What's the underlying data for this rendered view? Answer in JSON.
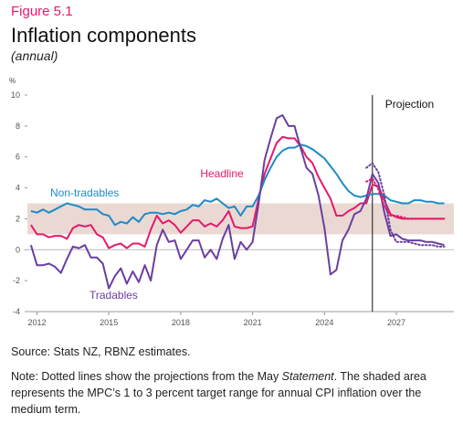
{
  "chart_data": {
    "type": "line",
    "figure_label": "Figure 5.1",
    "title": "Inflation components",
    "subtitle": "(annual)",
    "y_unit": "%",
    "x": [
      2011.75,
      2012,
      2012.25,
      2012.5,
      2012.75,
      2013,
      2013.25,
      2013.5,
      2013.75,
      2014,
      2014.25,
      2014.5,
      2014.75,
      2015,
      2015.25,
      2015.5,
      2015.75,
      2016,
      2016.25,
      2016.5,
      2016.75,
      2017,
      2017.25,
      2017.5,
      2017.75,
      2018,
      2018.25,
      2018.5,
      2018.75,
      2019,
      2019.25,
      2019.5,
      2019.75,
      2020,
      2020.25,
      2020.5,
      2020.75,
      2021,
      2021.25,
      2021.5,
      2021.75,
      2022,
      2022.25,
      2022.5,
      2022.75,
      2023,
      2023.25,
      2023.5,
      2023.75,
      2024,
      2024.25,
      2024.5,
      2024.75,
      2025,
      2025.25,
      2025.5,
      2025.75,
      2026,
      2026.25,
      2026.5,
      2026.75,
      2027,
      2027.25,
      2027.5,
      2027.75,
      2028,
      2028.25,
      2028.5,
      2028.75,
      2029
    ],
    "series": [
      {
        "name": "Headline",
        "color": "#e5196b",
        "values": [
          1.6,
          1.0,
          1.0,
          0.8,
          0.9,
          0.9,
          0.7,
          1.4,
          1.6,
          1.5,
          1.6,
          1.0,
          0.8,
          0.1,
          0.3,
          0.4,
          0.1,
          0.4,
          0.4,
          0.2,
          1.3,
          2.2,
          1.7,
          1.9,
          1.6,
          1.1,
          1.5,
          1.9,
          1.9,
          1.5,
          1.7,
          1.5,
          1.9,
          2.5,
          1.5,
          1.4,
          1.4,
          1.5,
          3.3,
          4.9,
          5.9,
          6.9,
          7.3,
          7.2,
          7.2,
          6.7,
          6.0,
          5.6,
          4.7,
          4.0,
          3.3,
          2.2,
          2.2,
          2.5,
          2.7,
          3.0,
          3.0,
          4.2,
          4.1,
          3.2,
          2.3,
          2.1,
          2.0,
          2.0,
          2.0,
          2.0,
          2.0,
          2.0,
          2.0,
          2.0
        ]
      },
      {
        "name": "Non-tradables",
        "color": "#1b8bc7",
        "values": [
          2.5,
          2.4,
          2.6,
          2.4,
          2.6,
          2.8,
          3.0,
          2.9,
          2.8,
          2.6,
          2.6,
          2.6,
          2.3,
          2.2,
          1.6,
          1.8,
          1.7,
          2.1,
          1.8,
          2.3,
          2.4,
          2.4,
          2.3,
          2.4,
          2.3,
          2.5,
          2.6,
          2.9,
          2.8,
          3.2,
          3.1,
          3.3,
          3.0,
          2.7,
          2.8,
          2.2,
          2.8,
          2.8,
          3.5,
          4.5,
          5.3,
          6.0,
          6.4,
          6.6,
          6.6,
          6.8,
          6.7,
          6.5,
          6.2,
          5.9,
          5.4,
          4.9,
          4.3,
          3.8,
          3.5,
          3.4,
          3.5,
          3.6,
          3.6,
          3.5,
          3.2,
          3.1,
          3.0,
          3.0,
          3.2,
          3.2,
          3.1,
          3.1,
          3.0,
          3.0
        ]
      },
      {
        "name": "Tradables",
        "color": "#6b3fa0",
        "values": [
          0.3,
          -1.0,
          -1.0,
          -0.9,
          -1.1,
          -1.5,
          -0.6,
          0.2,
          0.1,
          0.3,
          -0.5,
          -0.5,
          -0.9,
          -2.5,
          -1.7,
          -1.2,
          -2.2,
          -1.4,
          -2.1,
          -1.0,
          -2.0,
          0.3,
          1.3,
          0.5,
          0.6,
          -0.6,
          0.0,
          0.6,
          0.6,
          -0.5,
          0.0,
          -0.6,
          0.7,
          1.6,
          -0.6,
          0.5,
          0.0,
          0.5,
          3.0,
          5.8,
          7.2,
          8.5,
          8.7,
          8.0,
          8.0,
          6.6,
          5.3,
          4.9,
          3.5,
          1.4,
          -1.6,
          -1.3,
          0.6,
          1.3,
          2.3,
          2.5,
          3.3,
          4.9,
          4.3,
          2.4,
          0.9,
          1.0,
          0.7,
          0.6,
          0.6,
          0.6,
          0.5,
          0.5,
          0.4,
          0.3
        ]
      },
      {
        "color": "#e5196b",
        "dotted": true,
        "x": [
          2025.75,
          2026,
          2026.25,
          2026.5,
          2026.75,
          2027,
          2027.25,
          2027.5,
          2027.75,
          2028,
          2028.25,
          2028.5,
          2028.75,
          2029
        ],
        "values": [
          4.4,
          4.6,
          3.9,
          2.8,
          2.2,
          2.2,
          2.1,
          2.0,
          2.0,
          2.0,
          2.0,
          2.0,
          2.0,
          2.0
        ]
      },
      {
        "color": "#6b3fa0",
        "dotted": true,
        "x": [
          2025.75,
          2026,
          2026.25,
          2026.5,
          2026.75,
          2027,
          2027.25,
          2027.5,
          2027.75,
          2028,
          2028.25,
          2028.5,
          2028.75,
          2029
        ],
        "values": [
          5.3,
          5.6,
          5.0,
          3.5,
          1.3,
          0.5,
          0.5,
          0.5,
          0.4,
          0.3,
          0.3,
          0.3,
          0.2,
          0.2
        ]
      }
    ],
    "xlim": [
      2011.6,
      2029.4
    ],
    "xticks": [
      2012,
      2015,
      2018,
      2021,
      2024,
      2027
    ],
    "ylim": [
      -4,
      10
    ],
    "yticks": [
      -4,
      -2,
      0,
      2,
      4,
      6,
      8,
      10
    ],
    "band": [
      1,
      3
    ],
    "band_color": "#ead9d3",
    "projection_start": 2026,
    "projection_label": "Projection",
    "source": "Source: Stats NZ, RBNZ estimates.",
    "note": [
      "Note: Dotted lines show the projections from the May ",
      "Statement",
      ". The shaded area represents the MPC’s 1 to 3 percent target range for annual CPI inflation over the medium term."
    ]
  }
}
